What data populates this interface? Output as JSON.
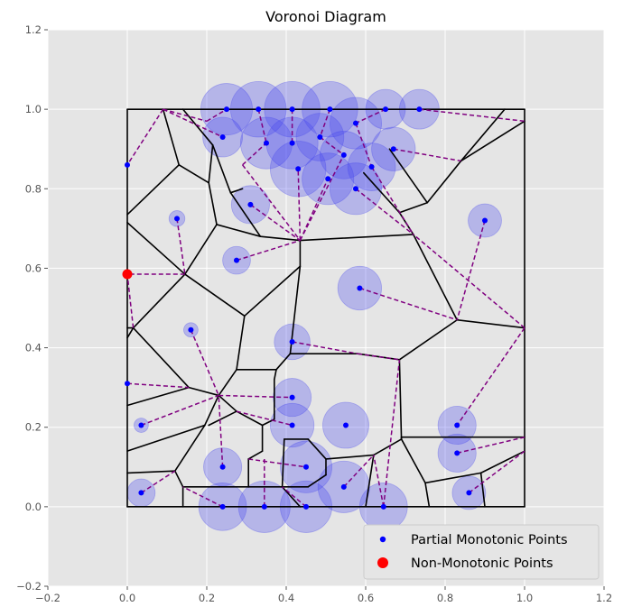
{
  "chart_data": {
    "type": "scatter",
    "title": "Voronoi Diagram",
    "xlabel": "",
    "ylabel": "",
    "xlim": [
      -0.2,
      1.2
    ],
    "ylim": [
      -0.2,
      1.2
    ],
    "xticks": [
      "−0.2",
      "0.0",
      "0.2",
      "0.4",
      "0.6",
      "0.8",
      "1.0",
      "1.2"
    ],
    "yticks": [
      "−0.2",
      "0.0",
      "0.2",
      "0.4",
      "0.6",
      "0.8",
      "1.0",
      "1.2"
    ],
    "grid": true,
    "legend_position": "lower-right",
    "colors": {
      "background": "#e5e5e5",
      "grid": "#ffffff",
      "partial_points": "#0000ff",
      "non_monotonic_points": "#ff0000",
      "circles": "#4444ee",
      "dashed_lines": "#800080",
      "voronoi_edges": "#000000"
    },
    "series": [
      {
        "name": "Partial Monotonic Points",
        "marker": "small-dot",
        "points": [
          [
            0.25,
            1.0
          ],
          [
            0.33,
            1.0
          ],
          [
            0.415,
            1.0
          ],
          [
            0.51,
            1.0
          ],
          [
            0.65,
            1.0
          ],
          [
            0.735,
            1.0
          ],
          [
            0.24,
            0.93
          ],
          [
            0.35,
            0.915
          ],
          [
            0.415,
            0.915
          ],
          [
            0.485,
            0.93
          ],
          [
            0.575,
            0.965
          ],
          [
            0.545,
            0.885
          ],
          [
            0.67,
            0.9
          ],
          [
            0.43,
            0.85
          ],
          [
            0.505,
            0.825
          ],
          [
            0.615,
            0.855
          ],
          [
            0.575,
            0.8
          ],
          [
            0.0,
            0.86
          ],
          [
            0.125,
            0.725
          ],
          [
            0.31,
            0.76
          ],
          [
            0.275,
            0.62
          ],
          [
            0.9,
            0.72
          ],
          [
            0.585,
            0.55
          ],
          [
            0.16,
            0.445
          ],
          [
            0.415,
            0.415
          ],
          [
            0.0,
            0.31
          ],
          [
            0.035,
            0.205
          ],
          [
            0.415,
            0.275
          ],
          [
            0.415,
            0.205
          ],
          [
            0.55,
            0.205
          ],
          [
            0.83,
            0.205
          ],
          [
            0.83,
            0.135
          ],
          [
            0.24,
            0.1
          ],
          [
            0.45,
            0.1
          ],
          [
            0.545,
            0.05
          ],
          [
            0.035,
            0.035
          ],
          [
            0.86,
            0.035
          ],
          [
            0.24,
            0.0
          ],
          [
            0.345,
            0.0
          ],
          [
            0.45,
            0.0
          ],
          [
            0.645,
            0.0
          ]
        ],
        "circle_radius": [
          0.065,
          0.07,
          0.07,
          0.07,
          0.05,
          0.05,
          0.05,
          0.065,
          0.065,
          0.06,
          0.065,
          0.06,
          0.055,
          0.07,
          0.065,
          0.06,
          0.065,
          0.0,
          0.02,
          0.048,
          0.035,
          0.042,
          0.055,
          0.018,
          0.045,
          0.0,
          0.018,
          0.048,
          0.055,
          0.058,
          0.048,
          0.048,
          0.048,
          0.065,
          0.065,
          0.035,
          0.042,
          0.06,
          0.065,
          0.065,
          0.06
        ]
      },
      {
        "name": "Non-Monotonic Points",
        "marker": "large-dot",
        "points": [
          [
            0.0,
            0.585
          ]
        ]
      }
    ],
    "voronoi_edges": [
      [
        [
          0,
          1
        ],
        [
          1,
          1
        ]
      ],
      [
        [
          1,
          1
        ],
        [
          1,
          0
        ]
      ],
      [
        [
          1,
          0
        ],
        [
          0,
          0
        ]
      ],
      [
        [
          0,
          0
        ],
        [
          0,
          1
        ]
      ],
      [
        [
          0.09,
          1
        ],
        [
          0.13,
          0.86
        ]
      ],
      [
        [
          0.13,
          0.86
        ],
        [
          0,
          0.735
        ]
      ],
      [
        [
          0.13,
          0.86
        ],
        [
          0.205,
          0.815
        ]
      ],
      [
        [
          0.205,
          0.815
        ],
        [
          0.215,
          0.91
        ]
      ],
      [
        [
          0.215,
          0.91
        ],
        [
          0.14,
          1
        ]
      ],
      [
        [
          0.205,
          0.815
        ],
        [
          0.225,
          0.71
        ]
      ],
      [
        [
          0.225,
          0.71
        ],
        [
          0.145,
          0.585
        ]
      ],
      [
        [
          0.225,
          0.71
        ],
        [
          0.335,
          0.68
        ]
      ],
      [
        [
          0.0,
          0.715
        ],
        [
          0.145,
          0.585
        ]
      ],
      [
        [
          0.145,
          0.585
        ],
        [
          0.015,
          0.45
        ]
      ],
      [
        [
          0.015,
          0.45
        ],
        [
          0.0,
          0.45
        ]
      ],
      [
        [
          0.015,
          0.45
        ],
        [
          0.0,
          0.425
        ]
      ],
      [
        [
          0.015,
          0.45
        ],
        [
          0.155,
          0.3
        ]
      ],
      [
        [
          0.145,
          0.585
        ],
        [
          0.295,
          0.48
        ]
      ],
      [
        [
          0.295,
          0.48
        ],
        [
          0.435,
          0.605
        ]
      ],
      [
        [
          0.295,
          0.48
        ],
        [
          0.275,
          0.345
        ]
      ],
      [
        [
          0.275,
          0.345
        ],
        [
          0.375,
          0.345
        ]
      ],
      [
        [
          0.375,
          0.345
        ],
        [
          0.41,
          0.385
        ]
      ],
      [
        [
          0.41,
          0.385
        ],
        [
          0.53,
          0.385
        ]
      ],
      [
        [
          0.53,
          0.385
        ],
        [
          0.58,
          0.385
        ]
      ],
      [
        [
          0.58,
          0.385
        ],
        [
          0.685,
          0.37
        ]
      ],
      [
        [
          0.685,
          0.37
        ],
        [
          0.69,
          0.17
        ]
      ],
      [
        [
          0.685,
          0.37
        ],
        [
          0.83,
          0.47
        ]
      ],
      [
        [
          0.83,
          0.47
        ],
        [
          1,
          0.45
        ]
      ],
      [
        [
          0.83,
          0.47
        ],
        [
          0.72,
          0.685
        ]
      ],
      [
        [
          0.72,
          0.685
        ],
        [
          0.435,
          0.67
        ]
      ],
      [
        [
          0.435,
          0.67
        ],
        [
          0.335,
          0.68
        ]
      ],
      [
        [
          0.435,
          0.67
        ],
        [
          0.435,
          0.605
        ]
      ],
      [
        [
          0.435,
          0.605
        ],
        [
          0.41,
          0.385
        ]
      ],
      [
        [
          0.335,
          0.68
        ],
        [
          0.26,
          0.79
        ]
      ],
      [
        [
          0.26,
          0.79
        ],
        [
          0.215,
          0.91
        ]
      ],
      [
        [
          0.26,
          0.79
        ],
        [
          0.29,
          0.8
        ]
      ],
      [
        [
          0.72,
          0.685
        ],
        [
          0.685,
          0.74
        ]
      ],
      [
        [
          0.685,
          0.74
        ],
        [
          0.595,
          0.84
        ]
      ],
      [
        [
          0.685,
          0.74
        ],
        [
          0.755,
          0.765
        ]
      ],
      [
        [
          0.755,
          0.765
        ],
        [
          0.84,
          0.87
        ]
      ],
      [
        [
          0.84,
          0.87
        ],
        [
          0.95,
          1
        ]
      ],
      [
        [
          0.84,
          0.87
        ],
        [
          1,
          0.97
        ]
      ],
      [
        [
          0.755,
          0.765
        ],
        [
          0.66,
          0.9
        ]
      ],
      [
        [
          0.0,
          0.255
        ],
        [
          0.155,
          0.3
        ]
      ],
      [
        [
          0.155,
          0.3
        ],
        [
          0.23,
          0.28
        ]
      ],
      [
        [
          0.23,
          0.28
        ],
        [
          0.275,
          0.345
        ]
      ],
      [
        [
          0.23,
          0.28
        ],
        [
          0.195,
          0.205
        ]
      ],
      [
        [
          0.195,
          0.205
        ],
        [
          0.0,
          0.14
        ]
      ],
      [
        [
          0.195,
          0.205
        ],
        [
          0.12,
          0.09
        ]
      ],
      [
        [
          0.12,
          0.09
        ],
        [
          0.0,
          0.085
        ]
      ],
      [
        [
          0.12,
          0.09
        ],
        [
          0.14,
          0.05
        ]
      ],
      [
        [
          0.14,
          0.05
        ],
        [
          0.14,
          0.0
        ]
      ],
      [
        [
          0.23,
          0.28
        ],
        [
          0.275,
          0.24
        ]
      ],
      [
        [
          0.275,
          0.24
        ],
        [
          0.34,
          0.205
        ]
      ],
      [
        [
          0.34,
          0.205
        ],
        [
          0.37,
          0.22
        ]
      ],
      [
        [
          0.37,
          0.22
        ],
        [
          0.37,
          0.32
        ]
      ],
      [
        [
          0.37,
          0.32
        ],
        [
          0.375,
          0.345
        ]
      ],
      [
        [
          0.34,
          0.205
        ],
        [
          0.34,
          0.14
        ]
      ],
      [
        [
          0.34,
          0.14
        ],
        [
          0.305,
          0.12
        ]
      ],
      [
        [
          0.305,
          0.12
        ],
        [
          0.305,
          0.05
        ]
      ],
      [
        [
          0.305,
          0.05
        ],
        [
          0.14,
          0.05
        ]
      ],
      [
        [
          0.305,
          0.05
        ],
        [
          0.39,
          0.05
        ]
      ],
      [
        [
          0.39,
          0.05
        ],
        [
          0.435,
          0.0
        ]
      ],
      [
        [
          0.39,
          0.05
        ],
        [
          0.395,
          0.17
        ]
      ],
      [
        [
          0.395,
          0.17
        ],
        [
          0.455,
          0.17
        ]
      ],
      [
        [
          0.455,
          0.17
        ],
        [
          0.5,
          0.12
        ]
      ],
      [
        [
          0.5,
          0.12
        ],
        [
          0.5,
          0.08
        ]
      ],
      [
        [
          0.5,
          0.08
        ],
        [
          0.455,
          0.05
        ]
      ],
      [
        [
          0.455,
          0.05
        ],
        [
          0.39,
          0.05
        ]
      ],
      [
        [
          0.5,
          0.12
        ],
        [
          0.62,
          0.13
        ]
      ],
      [
        [
          0.62,
          0.13
        ],
        [
          0.69,
          0.17
        ]
      ],
      [
        [
          0.62,
          0.13
        ],
        [
          0.6,
          0.0
        ]
      ],
      [
        [
          0.69,
          0.17
        ],
        [
          0.69,
          0.175
        ]
      ],
      [
        [
          0.69,
          0.175
        ],
        [
          1,
          0.175
        ]
      ],
      [
        [
          0.69,
          0.17
        ],
        [
          0.75,
          0.06
        ]
      ],
      [
        [
          0.75,
          0.06
        ],
        [
          0.76,
          0.0
        ]
      ],
      [
        [
          0.75,
          0.06
        ],
        [
          0.89,
          0.085
        ]
      ],
      [
        [
          0.89,
          0.085
        ],
        [
          1,
          0.14
        ]
      ],
      [
        [
          0.89,
          0.085
        ],
        [
          0.9,
          0.0
        ]
      ],
      [
        [
          0.205,
          0.205
        ],
        [
          0.275,
          0.24
        ]
      ]
    ],
    "connections": [
      [
        [
          0.09,
          1
        ],
        [
          0.24,
          0.93
        ]
      ],
      [
        [
          0.09,
          1
        ],
        [
          0.0,
          0.86
        ]
      ],
      [
        [
          0.09,
          1
        ],
        [
          0.2,
          0.97
        ]
      ],
      [
        [
          0.2,
          0.97
        ],
        [
          0.25,
          1.0
        ]
      ],
      [
        [
          0.29,
          0.86
        ],
        [
          0.35,
          0.915
        ]
      ],
      [
        [
          0.29,
          0.86
        ],
        [
          0.435,
          0.67
        ]
      ],
      [
        [
          0.31,
          0.76
        ],
        [
          0.435,
          0.67
        ]
      ],
      [
        [
          0.275,
          0.62
        ],
        [
          0.435,
          0.67
        ]
      ],
      [
        [
          0.435,
          0.67
        ],
        [
          0.43,
          0.85
        ]
      ],
      [
        [
          0.435,
          0.67
        ],
        [
          0.505,
          0.825
        ]
      ],
      [
        [
          0.435,
          0.67
        ],
        [
          0.545,
          0.885
        ]
      ],
      [
        [
          0.125,
          0.725
        ],
        [
          0.145,
          0.585
        ]
      ],
      [
        [
          0.145,
          0.585
        ],
        [
          0.0,
          0.585
        ]
      ],
      [
        [
          0.015,
          0.45
        ],
        [
          0.0,
          0.585
        ]
      ],
      [
        [
          0.16,
          0.445
        ],
        [
          0.23,
          0.28
        ]
      ],
      [
        [
          0.0,
          0.31
        ],
        [
          0.155,
          0.3
        ]
      ],
      [
        [
          0.035,
          0.205
        ],
        [
          0.23,
          0.28
        ]
      ],
      [
        [
          0.23,
          0.28
        ],
        [
          0.415,
          0.275
        ]
      ],
      [
        [
          0.275,
          0.24
        ],
        [
          0.415,
          0.205
        ]
      ],
      [
        [
          0.24,
          0.1
        ],
        [
          0.23,
          0.28
        ]
      ],
      [
        [
          0.24,
          0.0
        ],
        [
          0.14,
          0.05
        ]
      ],
      [
        [
          0.035,
          0.035
        ],
        [
          0.12,
          0.09
        ]
      ],
      [
        [
          0.345,
          0.0
        ],
        [
          0.345,
          0.12
        ]
      ],
      [
        [
          0.305,
          0.12
        ],
        [
          0.45,
          0.1
        ]
      ],
      [
        [
          0.45,
          0.0
        ],
        [
          0.39,
          0.05
        ]
      ],
      [
        [
          0.545,
          0.05
        ],
        [
          0.62,
          0.13
        ]
      ],
      [
        [
          0.645,
          0.0
        ],
        [
          0.62,
          0.13
        ]
      ],
      [
        [
          0.645,
          0.0
        ],
        [
          0.685,
          0.37
        ]
      ],
      [
        [
          0.415,
          0.415
        ],
        [
          0.58,
          0.385
        ]
      ],
      [
        [
          0.58,
          0.385
        ],
        [
          0.685,
          0.37
        ]
      ],
      [
        [
          0.585,
          0.55
        ],
        [
          0.83,
          0.47
        ]
      ],
      [
        [
          0.9,
          0.72
        ],
        [
          0.83,
          0.47
        ]
      ],
      [
        [
          1,
          0.45
        ],
        [
          0.83,
          0.205
        ]
      ],
      [
        [
          1,
          0.45
        ],
        [
          0.72,
          0.685
        ]
      ],
      [
        [
          0.83,
          0.135
        ],
        [
          1,
          0.175
        ]
      ],
      [
        [
          0.86,
          0.035
        ],
        [
          1,
          0.14
        ]
      ],
      [
        [
          0.575,
          0.8
        ],
        [
          0.72,
          0.685
        ]
      ],
      [
        [
          0.615,
          0.855
        ],
        [
          0.72,
          0.685
        ]
      ],
      [
        [
          0.67,
          0.9
        ],
        [
          0.84,
          0.87
        ]
      ],
      [
        [
          0.735,
          1.0
        ],
        [
          1,
          0.97
        ]
      ],
      [
        [
          0.65,
          1.0
        ],
        [
          0.575,
          0.965
        ]
      ],
      [
        [
          0.51,
          1.0
        ],
        [
          0.485,
          0.93
        ]
      ],
      [
        [
          0.415,
          1.0
        ],
        [
          0.415,
          0.915
        ]
      ],
      [
        [
          0.33,
          1.0
        ],
        [
          0.35,
          0.915
        ]
      ],
      [
        [
          0.575,
          0.965
        ],
        [
          0.615,
          0.855
        ]
      ],
      [
        [
          0.485,
          0.93
        ],
        [
          0.545,
          0.885
        ]
      ]
    ]
  },
  "legend": {
    "items": [
      {
        "label": "Partial Monotonic Points"
      },
      {
        "label": "Non-Monotonic Points"
      }
    ]
  }
}
